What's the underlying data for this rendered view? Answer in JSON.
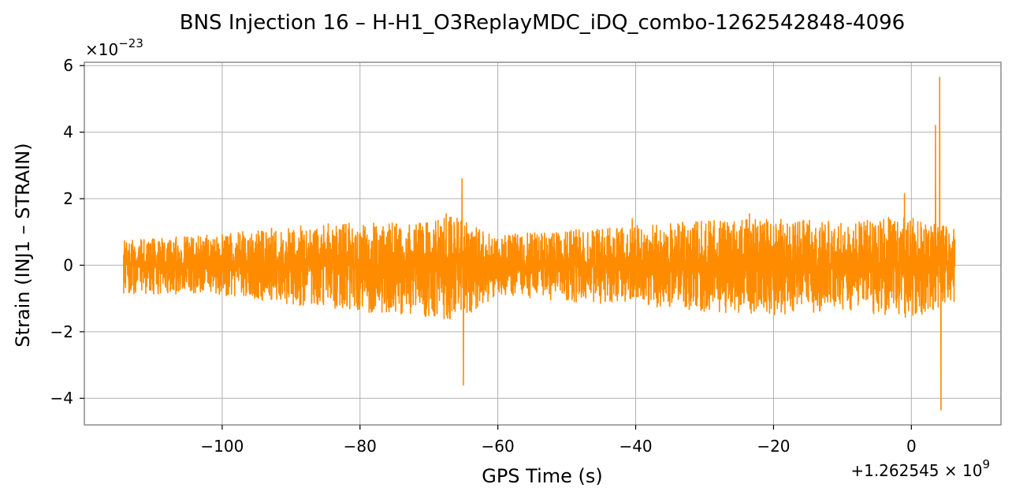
{
  "chart_data": {
    "type": "line",
    "title": "BNS Injection 16 – H-H1_O3ReplayMDC_iDQ_combo-1262542848-4096",
    "xlabel": "GPS Time (s)",
    "ylabel": "Strain (INJ1 – STRAIN)",
    "y_multiplier_label": "×10",
    "y_multiplier_exponent": "−23",
    "x_offset_label": "+1.262545 × 10",
    "x_offset_exponent": "9",
    "xlim": [
      -120,
      13
    ],
    "ylim": [
      -4.8,
      6.1
    ],
    "x_ticks": [
      {
        "value": -100,
        "label": "−100"
      },
      {
        "value": -80,
        "label": "−80"
      },
      {
        "value": -60,
        "label": "−60"
      },
      {
        "value": -40,
        "label": "−40"
      },
      {
        "value": -20,
        "label": "−20"
      },
      {
        "value": 0,
        "label": "0"
      }
    ],
    "y_ticks": [
      {
        "value": -4,
        "label": "−4"
      },
      {
        "value": -2,
        "label": "−2"
      },
      {
        "value": 0,
        "label": "0"
      },
      {
        "value": 2,
        "label": "2"
      },
      {
        "value": 4,
        "label": "4"
      },
      {
        "value": 6,
        "label": "6"
      }
    ],
    "grid": true,
    "series": [
      {
        "color": "#ff8c00",
        "x_start": -114.3,
        "x_end": 6.3,
        "envelope": [
          {
            "x": -114,
            "pos": 0.75,
            "neg": -0.85
          },
          {
            "x": -100,
            "pos": 0.95,
            "neg": -0.9
          },
          {
            "x": -90,
            "pos": 1.2,
            "neg": -1.2
          },
          {
            "x": -80,
            "pos": 1.3,
            "neg": -1.4
          },
          {
            "x": -72,
            "pos": 1.25,
            "neg": -1.5
          },
          {
            "x": -66,
            "pos": 1.5,
            "neg": -1.7
          },
          {
            "x": -60,
            "pos": 0.9,
            "neg": -0.9
          },
          {
            "x": -50,
            "pos": 1.05,
            "neg": -1.1
          },
          {
            "x": -40,
            "pos": 1.2,
            "neg": -1.2
          },
          {
            "x": -30,
            "pos": 1.35,
            "neg": -1.4
          },
          {
            "x": -20,
            "pos": 1.4,
            "neg": -1.5
          },
          {
            "x": -10,
            "pos": 1.3,
            "neg": -1.35
          },
          {
            "x": 0,
            "pos": 1.5,
            "neg": -1.6
          },
          {
            "x": 6,
            "pos": 1.1,
            "neg": -1.1
          }
        ],
        "peaks": [
          {
            "x": -67.5,
            "y": 1.55
          },
          {
            "x": -67.0,
            "y": -1.6
          },
          {
            "x": -65.2,
            "y": 2.6
          },
          {
            "x": -65.0,
            "y": -3.6
          },
          {
            "x": -40.5,
            "y": 1.4
          },
          {
            "x": -23.5,
            "y": 1.55
          },
          {
            "x": -1.0,
            "y": 2.15
          },
          {
            "x": 3.5,
            "y": 4.2
          },
          {
            "x": 4.1,
            "y": 5.65
          },
          {
            "x": 4.3,
            "y": -4.35
          }
        ]
      }
    ]
  }
}
